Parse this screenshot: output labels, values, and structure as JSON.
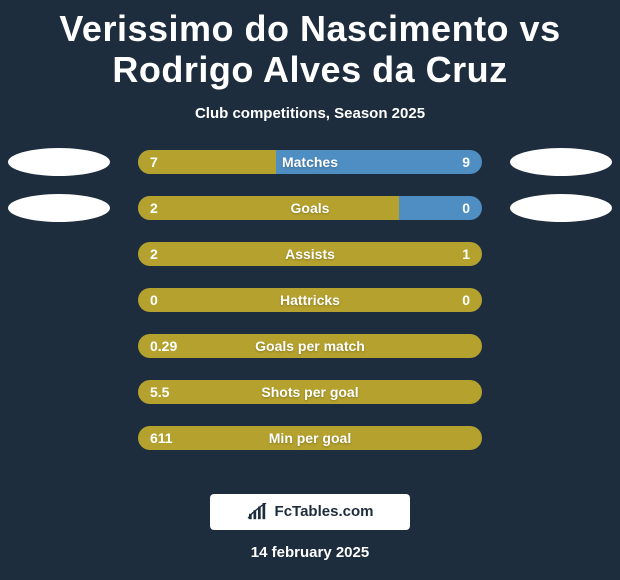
{
  "background_color": "#1e2d3d",
  "title": {
    "text": "Verissimo do Nascimento vs Rodrigo Alves da Cruz",
    "color": "#ffffff",
    "fontsize": 36
  },
  "subtitle": {
    "text": "Club competitions, Season 2025",
    "color": "#ffffff",
    "fontsize": 15
  },
  "bar_color": "#b5a22e",
  "track_color": "#4f8ec2",
  "oval_color": "#ffffff",
  "text_on_bar_color": "#ffffff",
  "rows": [
    {
      "label": "Matches",
      "left": "7",
      "right": "9",
      "left_pct": 40,
      "right_pct": 58
    },
    {
      "label": "Goals",
      "left": "2",
      "right": "0",
      "left_pct": 76,
      "right_pct": 12
    },
    {
      "label": "Assists",
      "left": "2",
      "right": "1",
      "left_pct": 100,
      "right_pct": 0
    },
    {
      "label": "Hattricks",
      "left": "0",
      "right": "0",
      "left_pct": 100,
      "right_pct": 0
    },
    {
      "label": "Goals per match",
      "left": "0.29",
      "right": "",
      "left_pct": 100,
      "right_pct": 0
    },
    {
      "label": "Shots per goal",
      "left": "5.5",
      "right": "",
      "left_pct": 100,
      "right_pct": 0
    },
    {
      "label": "Min per goal",
      "left": "611",
      "right": "",
      "left_pct": 100,
      "right_pct": 0
    }
  ],
  "ovals": [
    {
      "row": 0,
      "side": "left"
    },
    {
      "row": 0,
      "side": "right"
    },
    {
      "row": 1,
      "side": "left"
    },
    {
      "row": 1,
      "side": "right"
    }
  ],
  "attribution": {
    "icon_color": "#1e2d3d",
    "text": "FcTables.com",
    "bg_color": "#ffffff",
    "text_color": "#1e2d3d"
  },
  "date": {
    "text": "14 february 2025",
    "color": "#ffffff",
    "fontsize": 15
  },
  "label_fontsize": 14,
  "value_fontsize": 14
}
